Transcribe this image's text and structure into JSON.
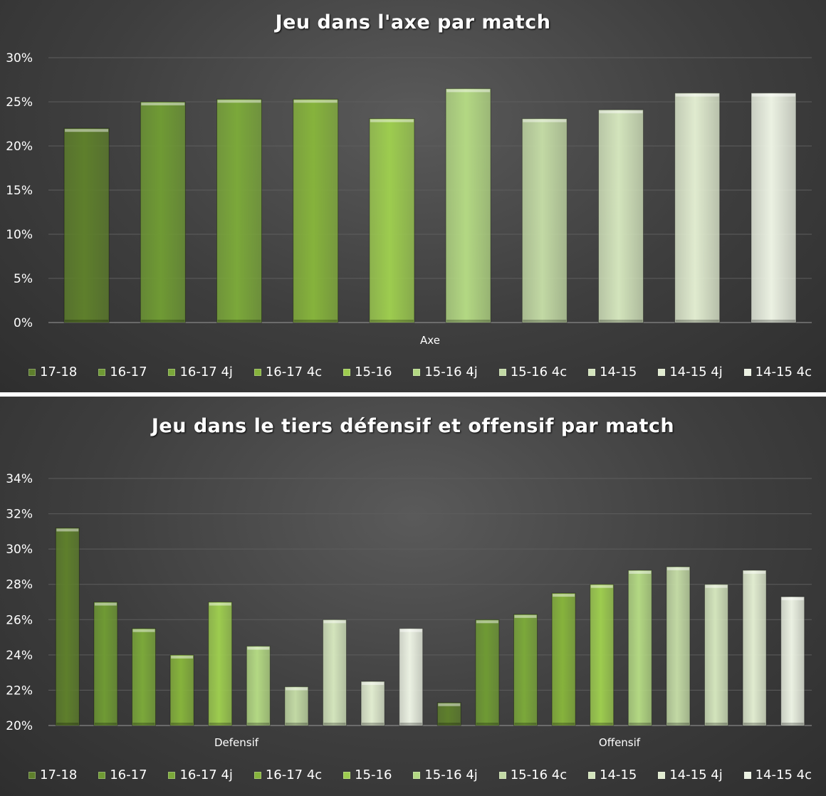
{
  "colors": [
    "#5e7f2c",
    "#6f9a34",
    "#7ba83a",
    "#86b33c",
    "#9dcc4f",
    "#b3d883",
    "#c2d9a4",
    "#d3e4bc",
    "#e0ebcf",
    "#ebf1e2"
  ],
  "legend": [
    "17-18",
    "16-17",
    "16-17 4j",
    "16-17 4c",
    "15-16",
    "15-16 4j",
    "15-16 4c",
    "14-15",
    "14-15 4j",
    "14-15 4c"
  ],
  "chart_data": [
    {
      "type": "bar",
      "title": "Jeu dans l'axe par match",
      "categories": [
        "Axe"
      ],
      "ylim": [
        0,
        30
      ],
      "yticks": [
        "0%",
        "5%",
        "10%",
        "15%",
        "20%",
        "25%",
        "30%"
      ],
      "y_unit": "%",
      "grid": true,
      "legend_position": "bottom",
      "series": [
        {
          "name": "17-18",
          "values": [
            22
          ]
        },
        {
          "name": "16-17",
          "values": [
            25
          ]
        },
        {
          "name": "16-17 4j",
          "values": [
            25.3
          ]
        },
        {
          "name": "16-17 4c",
          "values": [
            25.3
          ]
        },
        {
          "name": "15-16",
          "values": [
            23.1
          ]
        },
        {
          "name": "15-16 4j",
          "values": [
            26.5
          ]
        },
        {
          "name": "15-16 4c",
          "values": [
            23.1
          ]
        },
        {
          "name": "14-15",
          "values": [
            24.1
          ]
        },
        {
          "name": "14-15 4j",
          "values": [
            26
          ]
        },
        {
          "name": "14-15 4c",
          "values": [
            26
          ]
        }
      ]
    },
    {
      "type": "bar",
      "title": "Jeu dans le tiers défensif et offensif par match",
      "categories": [
        "Defensif",
        "Offensif"
      ],
      "ylim": [
        20,
        34
      ],
      "yticks": [
        "20%",
        "22%",
        "24%",
        "26%",
        "28%",
        "30%",
        "32%",
        "34%"
      ],
      "y_unit": "%",
      "grid": true,
      "legend_position": "bottom",
      "series": [
        {
          "name": "17-18",
          "values": [
            31.2,
            21.3
          ]
        },
        {
          "name": "16-17",
          "values": [
            27.0,
            26.0
          ]
        },
        {
          "name": "16-17 4j",
          "values": [
            25.5,
            26.3
          ]
        },
        {
          "name": "16-17 4c",
          "values": [
            24.0,
            27.5
          ]
        },
        {
          "name": "15-16",
          "values": [
            27.0,
            28.0
          ]
        },
        {
          "name": "15-16 4j",
          "values": [
            24.5,
            28.8
          ]
        },
        {
          "name": "15-16 4c",
          "values": [
            22.2,
            29.0
          ]
        },
        {
          "name": "14-15",
          "values": [
            26.0,
            28.0
          ]
        },
        {
          "name": "14-15 4j",
          "values": [
            22.5,
            28.8
          ]
        },
        {
          "name": "14-15 4c",
          "values": [
            25.5,
            27.3
          ]
        }
      ]
    }
  ]
}
